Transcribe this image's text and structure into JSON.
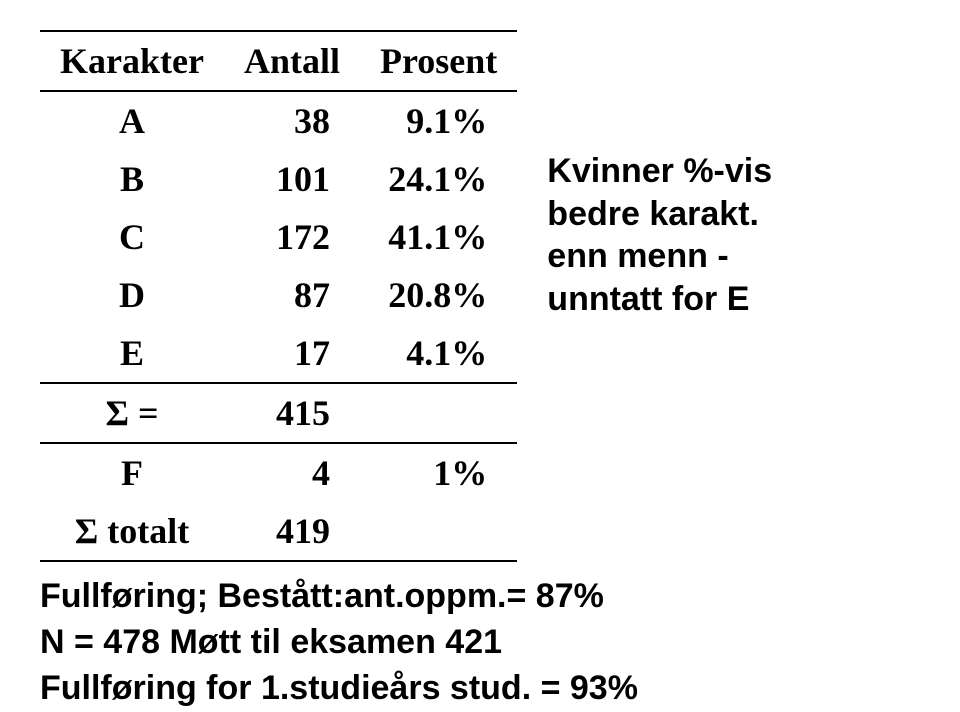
{
  "table": {
    "columns": [
      "Karakter",
      "Antall",
      "Prosent"
    ],
    "rows": [
      {
        "grade": "A",
        "count": "38",
        "percent": "9.1%"
      },
      {
        "grade": "B",
        "count": "101",
        "percent": "24.1%"
      },
      {
        "grade": "C",
        "count": "172",
        "percent": "41.1%"
      },
      {
        "grade": "D",
        "count": "87",
        "percent": "20.8%"
      },
      {
        "grade": "E",
        "count": "17",
        "percent": "4.1%"
      }
    ],
    "sigma": {
      "label": "Σ =",
      "count": "415",
      "percent": ""
    },
    "f_row": {
      "grade": "F",
      "count": "4",
      "percent": "1%"
    },
    "total": {
      "label": "Σ totalt",
      "count": "419",
      "percent": ""
    },
    "header_fontsize": 36,
    "cell_fontsize": 36,
    "border_color": "#000000",
    "background_color": "#ffffff",
    "text_color": "#000000"
  },
  "sidenote": {
    "line1": "Kvinner %-vis",
    "line2": "bedre karakt.",
    "line3": "enn menn -",
    "line4": "unntatt for E"
  },
  "footer": {
    "line1": "Fullføring; Bestått:ant.oppm.= 87%",
    "line2": "N = 478   Møtt til eksamen 421",
    "line3": "Fullføring for 1.studieårs stud. = 93%"
  }
}
